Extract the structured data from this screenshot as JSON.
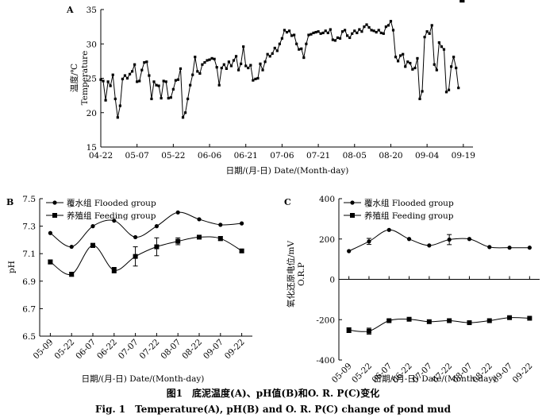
{
  "caption": {
    "zh": "图1　底泥温度(A)、pH值(B)和O. R. P(C)变化",
    "en": "Fig. 1　Temperature(A), pH(B) and O. R. P(C) change of pond mud"
  },
  "chart_data": [
    {
      "type": "line",
      "panel": "A",
      "ylabel_zh": "温度/℃",
      "ylabel_en": "Temperature",
      "xlabel": "日期/(月-日) Date/(Month-day)",
      "ylim": [
        15,
        35
      ],
      "yticks": [
        "15",
        "20",
        "25",
        "30",
        "35"
      ],
      "xticks": [
        "04-22",
        "05-07",
        "05-22",
        "06-06",
        "06-21",
        "07-06",
        "07-21",
        "08-05",
        "08-20",
        "09-04",
        "09-19"
      ],
      "xrange_days": [
        0,
        154
      ],
      "series": [
        {
          "day": [
            0,
            1,
            2,
            3,
            4,
            5,
            6,
            7,
            8,
            9,
            10,
            11,
            12,
            13,
            14,
            15,
            16,
            17,
            18,
            19,
            20,
            21,
            22,
            23,
            24,
            25,
            26,
            27,
            28,
            29,
            30,
            31,
            32,
            33,
            34,
            35,
            36,
            37,
            38,
            39,
            40,
            41,
            42,
            43,
            44,
            45,
            46,
            47,
            48,
            49,
            50,
            51,
            52,
            53,
            54,
            55,
            56,
            57,
            58,
            59,
            60,
            61,
            62,
            63,
            64,
            65,
            66,
            67,
            68,
            69,
            70,
            71,
            72,
            73,
            74,
            75,
            76,
            77,
            78,
            79,
            80,
            81,
            82,
            83,
            84,
            85,
            86,
            87,
            88,
            89,
            90,
            91,
            92,
            93,
            94,
            95,
            96,
            97,
            98,
            99,
            100,
            101,
            102,
            103,
            104,
            105,
            106,
            107,
            108,
            109,
            110,
            111,
            112,
            113,
            114,
            115,
            116,
            117,
            118,
            119,
            120,
            121,
            122,
            123,
            124,
            125,
            126,
            127,
            128,
            129,
            130,
            131,
            132,
            133,
            134,
            135,
            136,
            137,
            138,
            139,
            140,
            141,
            142,
            143,
            144,
            145,
            146,
            147,
            148,
            149,
            150
          ],
          "values": [
            24.8,
            24.6,
            21.8,
            24.5,
            23.9,
            25.5,
            22.0,
            19.3,
            21.0,
            24.9,
            25.4,
            25.0,
            25.6,
            26.0,
            27.0,
            24.5,
            24.6,
            26.2,
            27.3,
            27.4,
            25.4,
            22.0,
            24.5,
            24.0,
            23.9,
            22.1,
            24.6,
            24.5,
            22.1,
            22.2,
            23.4,
            24.7,
            24.8,
            26.4,
            19.3,
            20.0,
            22.0,
            24.0,
            25.5,
            28.1,
            26.0,
            25.7,
            27.0,
            27.3,
            27.6,
            27.7,
            27.9,
            27.8,
            26.6,
            24.0,
            26.5,
            27.0,
            26.4,
            27.4,
            26.8,
            27.6,
            28.2,
            26.2,
            27.1,
            29.6,
            26.8,
            26.5,
            26.9,
            24.7,
            24.9,
            25.0,
            27.1,
            26.2,
            27.4,
            28.5,
            28.2,
            28.6,
            29.4,
            29.0,
            30.0,
            30.8,
            32.0,
            31.7,
            31.9,
            31.2,
            31.3,
            30.0,
            29.2,
            29.3,
            28.0,
            30.0,
            31.3,
            31.4,
            31.6,
            31.7,
            31.8,
            31.5,
            31.6,
            31.9,
            31.6,
            32.1,
            30.6,
            30.5,
            30.9,
            30.8,
            31.8,
            32.0,
            31.2,
            30.9,
            31.5,
            31.9,
            31.6,
            32.1,
            31.8,
            32.5,
            32.8,
            32.4,
            32.0,
            31.9,
            31.7,
            32.0,
            31.6,
            31.5,
            32.5,
            32.7,
            33.3,
            32.0,
            28.1,
            27.5,
            28.3,
            28.5,
            26.7,
            27.4,
            27.2,
            26.3,
            26.5,
            27.9,
            22.0,
            23.1,
            31.0,
            31.8,
            31.5,
            32.7,
            27.0,
            26.2,
            30.2,
            29.6,
            29.2,
            23.0,
            23.3,
            26.7,
            28.1,
            26.5,
            23.6
          ]
        }
      ]
    },
    {
      "type": "line",
      "panel": "B",
      "ylabel": "pH",
      "xlabel": "日期/(月-日) Date/(Month-day)",
      "ylim": [
        6.5,
        7.5
      ],
      "yticks": [
        "6.5",
        "6.7",
        "6.9",
        "7.1",
        "7.3",
        "7.5"
      ],
      "categories": [
        "05-09",
        "05-22",
        "06-07",
        "06-22",
        "07-07",
        "07-22",
        "08-07",
        "08-22",
        "09-07",
        "09-22"
      ],
      "series": [
        {
          "name": "覆水组 Flooded group",
          "marker": "circle",
          "values": [
            7.25,
            7.15,
            7.3,
            7.34,
            7.22,
            7.3,
            7.4,
            7.35,
            7.31,
            7.32
          ],
          "err": [
            0,
            0,
            0,
            0,
            0,
            0,
            0,
            0,
            0,
            0
          ]
        },
        {
          "name": "养殖组 Feeding group",
          "marker": "square",
          "values": [
            7.04,
            6.95,
            7.16,
            6.98,
            7.08,
            7.15,
            7.19,
            7.22,
            7.21,
            7.12
          ],
          "err": [
            0.015,
            0.015,
            0.015,
            0.02,
            0.07,
            0.065,
            0.025,
            0.012,
            0.015,
            0.01
          ]
        }
      ]
    },
    {
      "type": "line",
      "panel": "C",
      "ylabel_zh": "氧化还原电位/mV",
      "ylabel_en": "O.R.P",
      "xlabel": "日期/(月-日) Date/(Month-day)",
      "ylim": [
        -400,
        400
      ],
      "yticks": [
        "-400",
        "-200",
        "0",
        "200",
        "400"
      ],
      "categories": [
        "05-09",
        "05-22",
        "06-07",
        "06-22",
        "07-07",
        "07-22",
        "08-07",
        "08-22",
        "09-07",
        "09-22"
      ],
      "series": [
        {
          "name": "覆水组 Flooded group",
          "marker": "circle",
          "values": [
            140,
            188,
            245,
            200,
            168,
            197,
            200,
            160,
            157,
            157
          ],
          "err": [
            0,
            15,
            0,
            0,
            0,
            25,
            0,
            0,
            0,
            0
          ]
        },
        {
          "name": "养殖组 Feeding group",
          "marker": "square",
          "values": [
            -252,
            -257,
            -205,
            -198,
            -210,
            -205,
            -215,
            -205,
            -190,
            -193
          ],
          "err": [
            12,
            15,
            5,
            0,
            0,
            0,
            0,
            0,
            0,
            0
          ]
        }
      ]
    }
  ]
}
